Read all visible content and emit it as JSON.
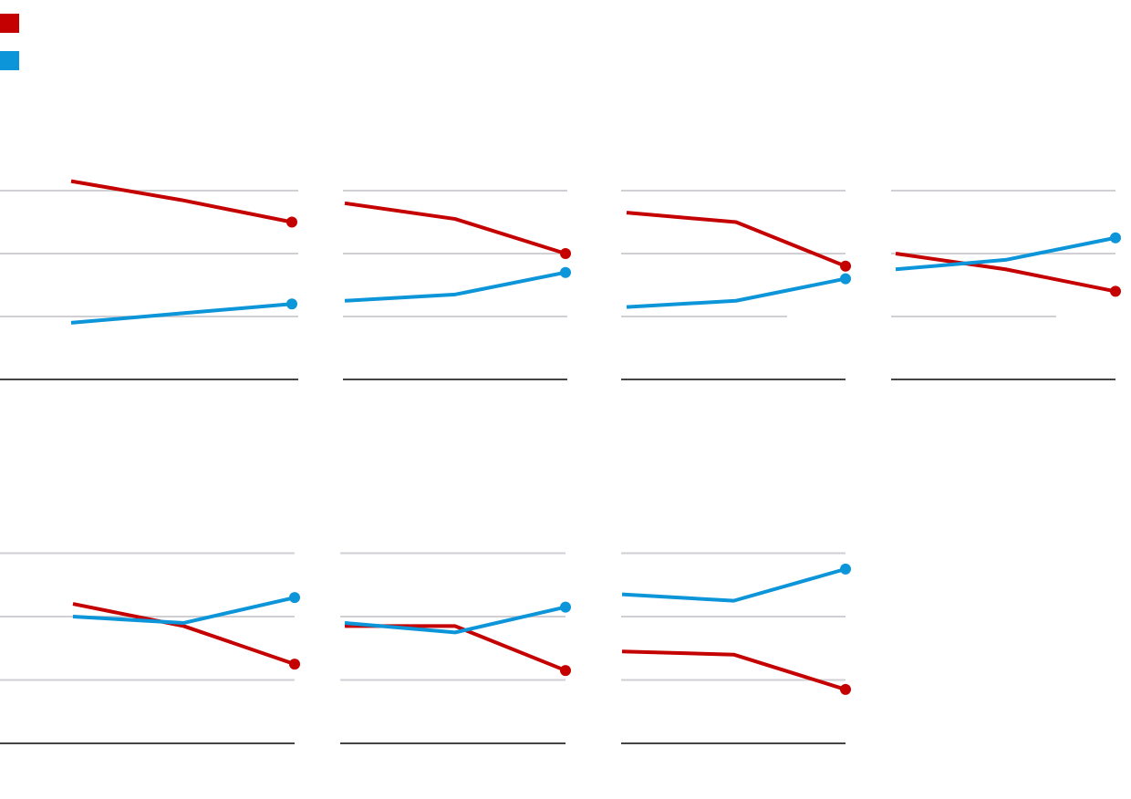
{
  "colors": {
    "series_a": "#c40000",
    "series_b": "#0c95d8",
    "grid": "#cfcfd4",
    "baseline": "#444444"
  },
  "legend": {
    "items": [
      {
        "name": "",
        "color": "#c40000"
      },
      {
        "name": "",
        "color": "#0c95d8"
      }
    ]
  },
  "chart_data": [
    {
      "type": "line",
      "title": "",
      "x": [
        0,
        1,
        2
      ],
      "ylim": [
        0,
        3
      ],
      "gridlines": [
        1,
        2,
        3
      ],
      "grid_short": [],
      "series": [
        {
          "name": "",
          "values": [
            3.15,
            2.85,
            2.5
          ]
        },
        {
          "name": "",
          "values": [
            0.9,
            1.05,
            1.2
          ]
        }
      ]
    },
    {
      "type": "line",
      "title": "",
      "x": [
        0,
        1,
        2
      ],
      "ylim": [
        0,
        3
      ],
      "gridlines": [
        1,
        2,
        3
      ],
      "grid_short": [],
      "series": [
        {
          "name": "",
          "values": [
            2.8,
            2.55,
            2.0
          ]
        },
        {
          "name": "",
          "values": [
            1.25,
            1.35,
            1.7
          ]
        }
      ]
    },
    {
      "type": "line",
      "title": "",
      "x": [
        0,
        1,
        2
      ],
      "ylim": [
        0,
        3
      ],
      "gridlines": [
        1,
        2,
        3
      ],
      "grid_short": [
        1
      ],
      "series": [
        {
          "name": "",
          "values": [
            2.65,
            2.5,
            1.8
          ]
        },
        {
          "name": "",
          "values": [
            1.15,
            1.25,
            1.6
          ]
        }
      ]
    },
    {
      "type": "line",
      "title": "",
      "x": [
        0,
        1,
        2
      ],
      "ylim": [
        0,
        3
      ],
      "gridlines": [
        1,
        2,
        3
      ],
      "grid_short": [
        1
      ],
      "series": [
        {
          "name": "",
          "values": [
            2.0,
            1.75,
            1.4
          ]
        },
        {
          "name": "",
          "values": [
            1.75,
            1.9,
            2.25
          ]
        }
      ]
    },
    {
      "type": "line",
      "title": "",
      "x": [
        0,
        1,
        2
      ],
      "ylim": [
        0,
        3
      ],
      "gridlines": [
        1,
        2,
        3
      ],
      "grid_short": [],
      "series": [
        {
          "name": "",
          "values": [
            2.2,
            1.85,
            1.25
          ]
        },
        {
          "name": "",
          "values": [
            2.0,
            1.9,
            2.3
          ]
        }
      ]
    },
    {
      "type": "line",
      "title": "",
      "x": [
        0,
        1,
        2
      ],
      "ylim": [
        0,
        3
      ],
      "gridlines": [
        1,
        2,
        3
      ],
      "grid_short": [],
      "series": [
        {
          "name": "",
          "values": [
            1.85,
            1.85,
            1.15
          ]
        },
        {
          "name": "",
          "values": [
            1.9,
            1.75,
            2.15
          ]
        }
      ]
    },
    {
      "type": "line",
      "title": "",
      "x": [
        0,
        1,
        2
      ],
      "ylim": [
        0,
        3
      ],
      "gridlines": [
        1,
        2,
        3
      ],
      "grid_short": [],
      "series": [
        {
          "name": "",
          "values": [
            1.45,
            1.4,
            0.85
          ]
        },
        {
          "name": "",
          "values": [
            2.35,
            2.25,
            2.75
          ]
        }
      ]
    }
  ]
}
